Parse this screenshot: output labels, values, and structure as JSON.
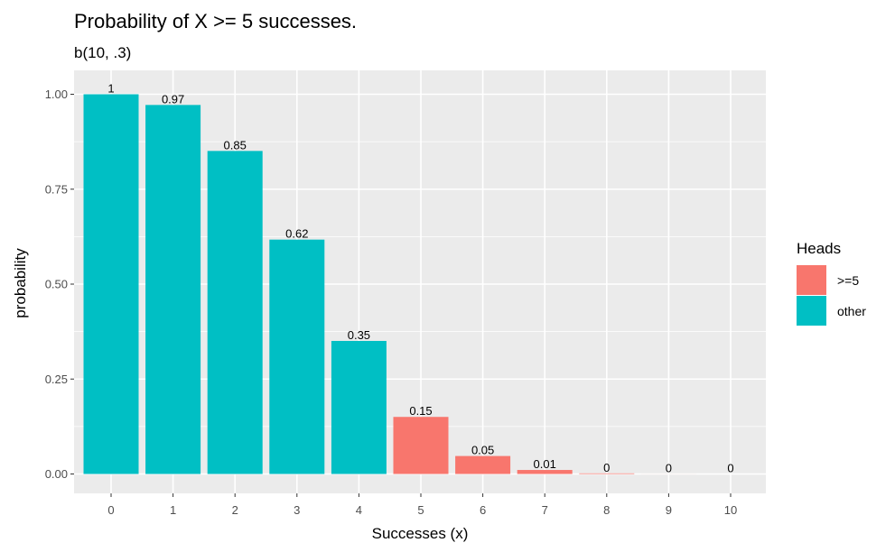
{
  "chart_data": {
    "type": "bar",
    "title": "Probability of X >= 5 successes.",
    "subtitle": "b(10, .3)",
    "xlabel": "Successes (x)",
    "ylabel": "probability",
    "categories": [
      "0",
      "1",
      "2",
      "3",
      "4",
      "5",
      "6",
      "7",
      "8",
      "9",
      "10"
    ],
    "values": [
      1.0,
      0.9718,
      0.8507,
      0.6172,
      0.3504,
      0.1503,
      0.0473,
      0.0106,
      0.0016,
      0.0001,
      0.0
    ],
    "data_labels": [
      "1",
      "0.97",
      "0.85",
      "0.62",
      "0.35",
      "0.15",
      "0.05",
      "0.01",
      "0",
      "0",
      "0"
    ],
    "groups": [
      "other",
      "other",
      "other",
      "other",
      "other",
      ">=5",
      ">=5",
      ">=5",
      ">=5",
      ">=5",
      ">=5"
    ],
    "ylim": [
      0,
      1.05
    ],
    "yticks": [
      0,
      0.25,
      0.5,
      0.75,
      1.0
    ],
    "ytick_labels": [
      "0.00",
      "0.25",
      "0.50",
      "0.75",
      "1.00"
    ],
    "grid": true,
    "legend": {
      "title": "Heads",
      "position": "right",
      "entries": [
        {
          "label": ">=5",
          "color": "#F8766D"
        },
        {
          "label": "other",
          "color": "#00BFC4"
        }
      ]
    },
    "colors": {
      "panel_background": "#EBEBEB",
      "grid": "#FFFFFF"
    }
  }
}
